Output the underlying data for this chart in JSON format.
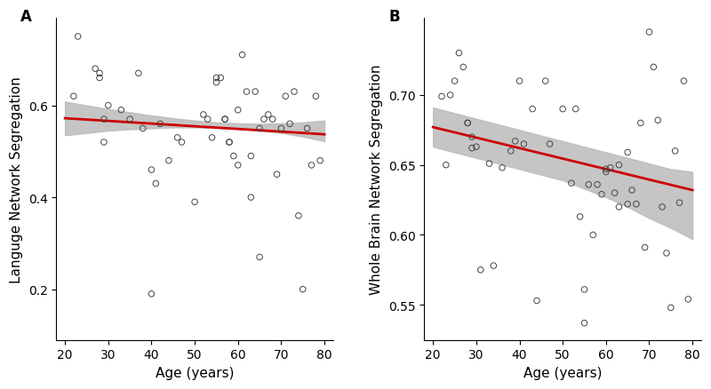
{
  "panel_A": {
    "label": "A",
    "ylabel": "Languge Network Segregation",
    "xlabel": "Age (years)",
    "xlim": [
      18,
      82
    ],
    "ylim": [
      0.09,
      0.79
    ],
    "yticks": [
      0.2,
      0.4,
      0.6
    ],
    "xticks": [
      20,
      30,
      40,
      50,
      60,
      70,
      80
    ],
    "scatter_x": [
      22,
      23,
      27,
      28,
      28,
      29,
      29,
      30,
      33,
      35,
      37,
      38,
      40,
      40,
      41,
      42,
      44,
      46,
      47,
      50,
      52,
      53,
      54,
      55,
      55,
      56,
      57,
      57,
      58,
      58,
      59,
      60,
      60,
      61,
      62,
      63,
      63,
      64,
      65,
      65,
      66,
      67,
      68,
      69,
      70,
      71,
      72,
      73,
      74,
      75,
      76,
      77,
      78,
      79
    ],
    "scatter_y": [
      0.62,
      0.75,
      0.68,
      0.67,
      0.66,
      0.57,
      0.52,
      0.6,
      0.59,
      0.57,
      0.67,
      0.55,
      0.19,
      0.46,
      0.43,
      0.56,
      0.48,
      0.53,
      0.52,
      0.39,
      0.58,
      0.57,
      0.53,
      0.66,
      0.65,
      0.66,
      0.57,
      0.57,
      0.52,
      0.52,
      0.49,
      0.59,
      0.47,
      0.71,
      0.63,
      0.4,
      0.49,
      0.63,
      0.55,
      0.27,
      0.57,
      0.58,
      0.57,
      0.45,
      0.55,
      0.62,
      0.56,
      0.63,
      0.36,
      0.2,
      0.55,
      0.47,
      0.62,
      0.48
    ],
    "line_x": [
      20,
      80
    ],
    "line_y": [
      0.572,
      0.537
    ],
    "ci_x": [
      20,
      25,
      30,
      35,
      40,
      45,
      50,
      55,
      60,
      65,
      70,
      75,
      80
    ],
    "ci_upper": [
      0.608,
      0.6,
      0.592,
      0.585,
      0.578,
      0.572,
      0.567,
      0.563,
      0.561,
      0.56,
      0.561,
      0.563,
      0.567
    ],
    "ci_lower": [
      0.535,
      0.54,
      0.545,
      0.548,
      0.55,
      0.552,
      0.552,
      0.551,
      0.549,
      0.545,
      0.54,
      0.532,
      0.522
    ]
  },
  "panel_B": {
    "label": "B",
    "ylabel": "Whole Brain Network Segregation",
    "xlabel": "Age (years)",
    "xlim": [
      18,
      82
    ],
    "ylim": [
      0.525,
      0.755
    ],
    "yticks": [
      0.55,
      0.6,
      0.65,
      0.7
    ],
    "xticks": [
      20,
      30,
      40,
      50,
      60,
      70,
      80
    ],
    "scatter_x": [
      22,
      23,
      24,
      25,
      26,
      27,
      28,
      28,
      29,
      29,
      30,
      31,
      33,
      34,
      36,
      38,
      39,
      40,
      41,
      43,
      44,
      46,
      47,
      50,
      52,
      53,
      54,
      55,
      55,
      56,
      57,
      58,
      59,
      60,
      60,
      61,
      62,
      63,
      63,
      65,
      65,
      66,
      67,
      68,
      69,
      70,
      71,
      72,
      73,
      74,
      75,
      76,
      77,
      78,
      79
    ],
    "scatter_y": [
      0.699,
      0.65,
      0.7,
      0.71,
      0.73,
      0.72,
      0.68,
      0.68,
      0.67,
      0.662,
      0.663,
      0.575,
      0.651,
      0.578,
      0.648,
      0.66,
      0.667,
      0.71,
      0.665,
      0.69,
      0.553,
      0.71,
      0.665,
      0.69,
      0.637,
      0.69,
      0.613,
      0.537,
      0.561,
      0.636,
      0.6,
      0.636,
      0.629,
      0.645,
      0.647,
      0.648,
      0.63,
      0.65,
      0.62,
      0.659,
      0.622,
      0.632,
      0.622,
      0.68,
      0.591,
      0.745,
      0.72,
      0.682,
      0.62,
      0.587,
      0.548,
      0.66,
      0.623,
      0.71,
      0.554
    ],
    "line_x": [
      20,
      80
    ],
    "line_y": [
      0.677,
      0.632
    ],
    "ci_x": [
      20,
      25,
      30,
      35,
      40,
      45,
      50,
      55,
      60,
      65,
      70,
      75,
      80
    ],
    "ci_upper": [
      0.691,
      0.687,
      0.683,
      0.679,
      0.675,
      0.671,
      0.667,
      0.663,
      0.659,
      0.655,
      0.651,
      0.647,
      0.645
    ],
    "ci_lower": [
      0.663,
      0.659,
      0.655,
      0.651,
      0.647,
      0.643,
      0.639,
      0.633,
      0.627,
      0.62,
      0.612,
      0.605,
      0.597
    ]
  },
  "scatter_edgecolor": "#444444",
  "scatter_facecolor": "none",
  "scatter_size": 22,
  "scatter_linewidth": 0.7,
  "line_color": "#cc0000",
  "line_width": 2.0,
  "ci_color": "#bbbbbb",
  "ci_alpha": 0.85,
  "background_color": "#ffffff",
  "font_family": "sans-serif",
  "tick_fontsize": 10,
  "label_fontsize": 11,
  "panel_label_fontsize": 12,
  "spine_linewidth": 0.8
}
